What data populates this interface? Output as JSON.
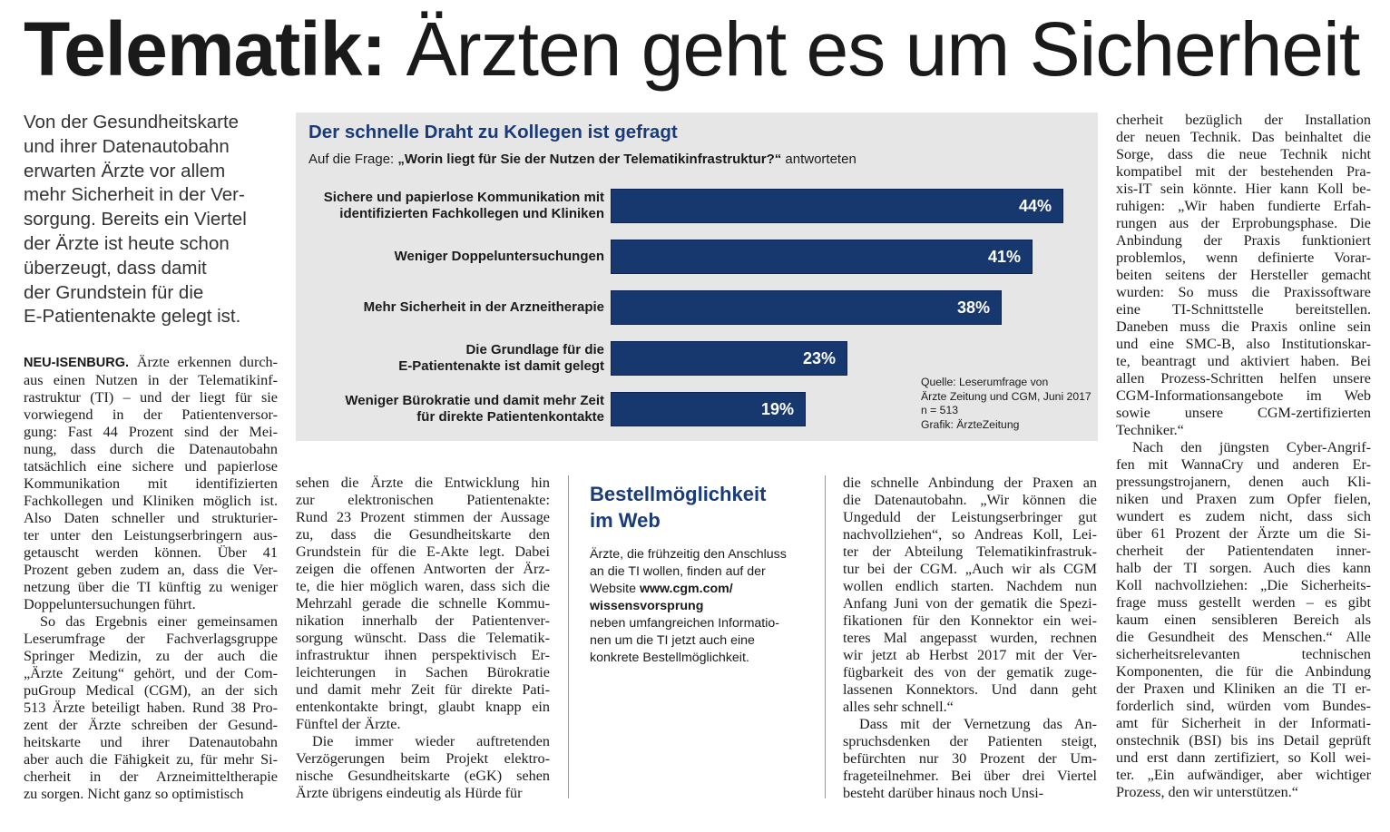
{
  "headline": {
    "bold": "Telematik:",
    "light": " Ärzten geht es um Sicherheit"
  },
  "lead": [
    "Von der Gesundheitskarte",
    "und ihrer Datenautobahn",
    "erwarten Ärzte vor allem",
    "mehr Sicherheit in der Ver-",
    "sorgung. Bereits ein Viertel",
    "der Ärzte ist heute schon",
    "überzeugt, dass damit",
    "der Grundstein für die",
    "E-Patientenakte gelegt ist."
  ],
  "article": {
    "dateline": "NEU-ISENBURG.",
    "col1": [
      " Ärzte erkennen durch-",
      "aus einen Nutzen in der Telematikinf-",
      "rastruktur (TI) – und der liegt für sie",
      "vorwiegend in der Patientenversor-",
      "gung: Fast 44 Prozent sind der Mei-",
      "nung, dass durch die Datenautobahn",
      "tatsächlich eine sichere und papierlose",
      "Kommunikation mit identifizierten",
      "Fachkollegen und Kliniken möglich ist.",
      "Also Daten schneller und strukturier-",
      "ter unter den Leistungserbringern aus-",
      "getauscht werden können. Über 41",
      "Prozent geben zudem an, dass die Ver-",
      "netzung über die TI künftig zu weniger",
      "Doppeluntersuchungen führt.",
      "So das Ergebnis einer gemeinsamen",
      "Leserumfrage der Fachverlagsgruppe",
      "Springer Medizin, zu der auch die",
      "„Ärzte Zeitung“ gehört, und der Com-",
      "puGroup Medical (CGM), an der sich",
      "513 Ärzte beteiligt haben. Rund 38 Pro-",
      "zent der Ärzte schreiben der Gesund-",
      "heitskarte und ihrer Datenautobahn",
      "aber auch die Fähigkeit zu, für mehr Si-",
      "cherheit in der Arzneimitteltherapie",
      "zu sorgen. Nicht ganz so optimistisch"
    ],
    "col2": [
      "sehen die Ärzte die Entwicklung hin",
      "zur elektronischen Patientenakte:",
      "Rund 23 Prozent stimmen der Aussage",
      "zu, dass die Gesundheitskarte den",
      "Grundstein für die E-Akte legt. Dabei",
      "zeigen die offenen Antworten der Ärz-",
      "te, die hier möglich waren, dass sich die",
      "Mehrzahl gerade die schnelle Kommu-",
      "nikation innerhalb der Patientenver-",
      "sorgung wünscht. Dass die Telematik-",
      "infrastruktur ihnen perspektivisch Er-",
      "leichterungen in Sachen Bürokratie",
      "und damit mehr Zeit für direkte Pati-",
      "entenkontakte bringt, glaubt knapp ein",
      "Fünftel der Ärzte.",
      "Die immer wieder auftretenden",
      "Verzögerungen beim Projekt elektro-",
      "nische Gesundheitskarte (eGK) sehen",
      "Ärzte übrigens eindeutig als Hürde für"
    ],
    "col4": [
      "die schnelle Anbindung der Praxen an",
      "die Datenautobahn. „Wir können die",
      "Ungeduld der Leistungserbringer gut",
      "nachvollziehen“, so Andreas Koll, Lei-",
      "ter der Abteilung Telematikinfrastruk-",
      "tur bei der CGM. „Auch wir als CGM",
      "wollen endlich starten. Nachdem nun",
      "Anfang Juni von der gematik die Spezi-",
      "fikationen für den Konnektor ein wei-",
      "teres Mal angepasst wurden, rechnen",
      "wir jetzt ab Herbst 2017 mit der Ver-",
      "fügbarkeit des von der gematik zuge-",
      "lassenen Konnektors. Und dann geht",
      "alles sehr schnell.“",
      "Dass mit der Vernetzung das An-",
      "spruchsdenken der Patienten steigt,",
      "befürchten nur 30 Prozent der Um-",
      "frageteilnehmer. Bei über drei Viertel",
      "besteht darüber hinaus noch Unsi-"
    ],
    "col5": [
      "cherheit bezüglich der Installation",
      "der neuen Technik. Das beinhaltet die",
      "Sorge, dass die neue Technik nicht",
      "kompatibel mit der bestehenden Pra-",
      "xis-IT sein könnte. Hier kann Koll be-",
      "ruhigen: „Wir haben fundierte Erfah-",
      "rungen aus der Erprobungsphase. Die",
      "Anbindung der Praxis funktioniert",
      "problemlos, wenn definierte Vorar-",
      "beiten seitens der Hersteller gemacht",
      "wurden: So muss die Praxissoftware",
      "eine TI-Schnittstelle bereitstellen.",
      "Daneben muss die Praxis online sein",
      "und eine SMC-B, also Institutionskar-",
      "te, beantragt und aktiviert haben. Bei",
      "allen Prozess-Schritten helfen unsere",
      "CGM-Informationsangebote im Web",
      "sowie unsere CGM-zertifizierten",
      "Techniker.“",
      "Nach den jüngsten Cyber-Angrif-",
      "fen mit WannaCry und anderen Er-",
      "pressungstrojanern, denen auch Kli-",
      "niken und Praxen zum Opfer fielen,",
      "wundert es zudem nicht, dass sich",
      "über 61 Prozent der Ärzte um die Si-",
      "cherheit der Patientendaten inner-",
      "halb der TI sorgen. Auch dies kann",
      "Koll nachvollziehen: „Die Sicherheits-",
      "frage muss gestellt werden – es gibt",
      "kaum einen sensibleren Bereich als",
      "die Gesundheit des Menschen.“ Alle",
      "sicherheitsrelevanten technischen",
      "Komponenten, die für die Anbindung",
      "der Praxen und Kliniken an die TI er-",
      "forderlich sind, würden vom Bundes-",
      "amt für Sicherheit in der Informati-",
      "onstechnik (BSI) bis ins Detail geprüft",
      "und erst dann zertifiziert, so Koll wei-",
      "ter. „Ein aufwändiger, aber wichtiger",
      "Prozess, den wir unterstützen.“"
    ]
  },
  "chart_data": {
    "type": "bar",
    "title": "Der schnelle Draht zu Kollegen ist gefragt",
    "question_prefix": "Auf die Frage: ",
    "question": "„Worin liegt für Sie der Nutzen der Telematikinfrastruktur?“",
    "question_suffix": " antworteten",
    "categories": [
      [
        "Sichere und papierlose Kommunikation mit",
        "identifizierten Fachkollegen und Kliniken"
      ],
      [
        "Weniger Doppeluntersuchungen"
      ],
      [
        "Mehr Sicherheit in der Arzneitherapie"
      ],
      [
        "Die Grundlage für die",
        "E-Patientenakte ist damit gelegt"
      ],
      [
        "Weniger Bürokratie und damit mehr Zeit",
        "für direkte Patientenkontakte"
      ]
    ],
    "values": [
      44,
      41,
      38,
      23,
      19
    ],
    "value_labels": [
      "44%",
      "41%",
      "38%",
      "23%",
      "19%"
    ],
    "xlim": [
      0,
      44
    ],
    "bar_color": "#17386e",
    "source": [
      "Quelle: Leserumfrage von",
      "Ärzte Zeitung und CGM, Juni 2017",
      "n = 513",
      "Grafik: ÄrzteZeitung"
    ]
  },
  "infobox": {
    "title": [
      "Bestellmöglichkeit",
      "im Web"
    ],
    "body": [
      "Ärzte, die frühzeitig den Anschluss",
      "an die TI wollen, finden auf der",
      "Website www.cgm.com/",
      "wissensvorsprung",
      "neben umfangreichen Informatio-",
      "nen um die TI jetzt auch eine",
      "konkrete Bestellmöglichkeit."
    ],
    "bold_lines": [
      2,
      3
    ],
    "bold_prefix": "Website "
  }
}
